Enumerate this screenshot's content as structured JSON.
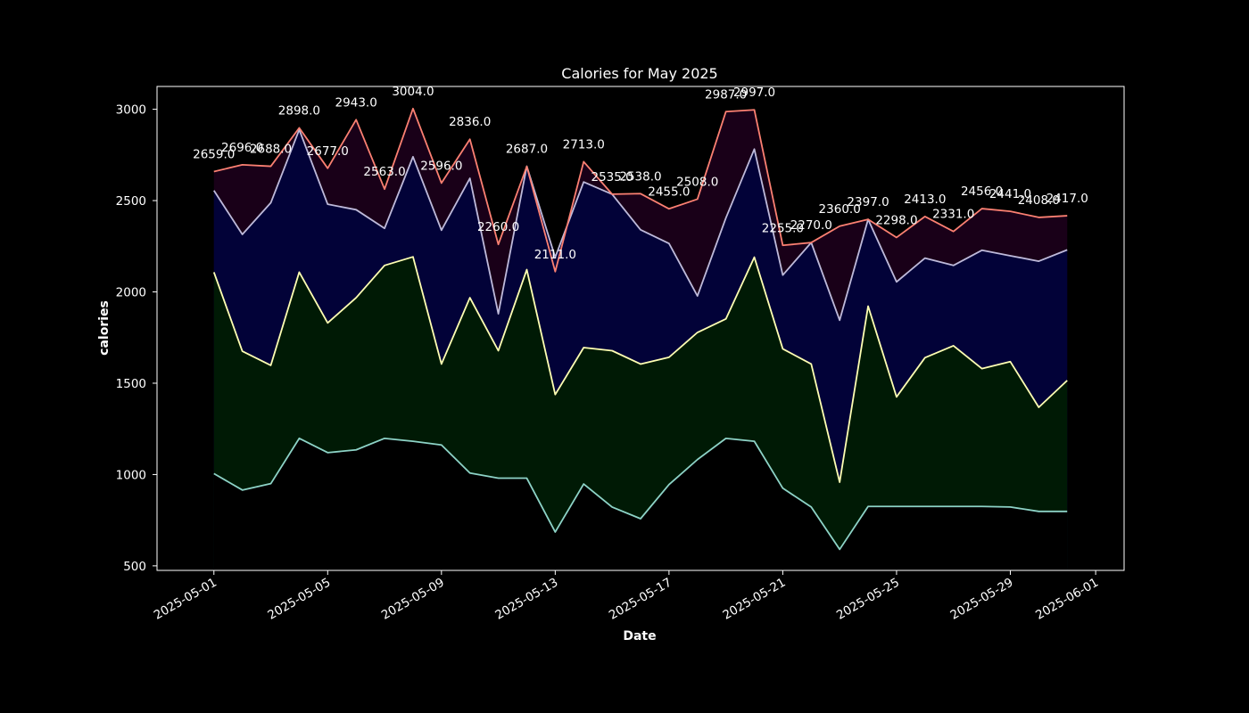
{
  "chart_data": {
    "type": "line",
    "title": "Calories for May 2025",
    "xlabel": "Date",
    "ylabel": "calories",
    "xlim": [
      "2025-04-29",
      "2025-06-02"
    ],
    "ylim": [
      475,
      3125
    ],
    "grid": false,
    "yticks": [
      500,
      1000,
      1500,
      2000,
      2500,
      3000
    ],
    "xticks": [
      "2025-05-01",
      "2025-05-05",
      "2025-05-09",
      "2025-05-13",
      "2025-05-17",
      "2025-05-21",
      "2025-05-25",
      "2025-05-29",
      "2025-06-01"
    ],
    "x": [
      "2025-05-01",
      "2025-05-02",
      "2025-05-03",
      "2025-05-04",
      "2025-05-05",
      "2025-05-06",
      "2025-05-07",
      "2025-05-08",
      "2025-05-09",
      "2025-05-10",
      "2025-05-11",
      "2025-05-12",
      "2025-05-13",
      "2025-05-14",
      "2025-05-15",
      "2025-05-16",
      "2025-05-17",
      "2025-05-18",
      "2025-05-19",
      "2025-05-20",
      "2025-05-21",
      "2025-05-22",
      "2025-05-23",
      "2025-05-24",
      "2025-05-25",
      "2025-05-26",
      "2025-05-27",
      "2025-05-28",
      "2025-05-29",
      "2025-05-30",
      "2025-05-31"
    ],
    "series": [
      {
        "color": "#8dd3c7",
        "fill": "#000000",
        "values": [
          1005,
          915,
          950,
          1198,
          1120,
          1135,
          1198,
          1182,
          1162,
          1008,
          980,
          980,
          685,
          948,
          822,
          758,
          945,
          1082,
          1198,
          1182,
          925,
          822,
          590,
          825,
          825,
          825,
          825,
          825,
          822,
          798,
          798
        ]
      },
      {
        "color": "#ffffb3",
        "fill": "#001a05",
        "values": [
          2108,
          1675,
          1598,
          2108,
          1830,
          1968,
          2145,
          2192,
          1605,
          1968,
          1678,
          2122,
          1438,
          1695,
          1678,
          1605,
          1642,
          1778,
          1852,
          2190,
          1688,
          1605,
          958,
          1922,
          1425,
          1640,
          1705,
          1580,
          1618,
          1368,
          1515
        ]
      },
      {
        "color": "#bebada",
        "fill": "#020238",
        "values": [
          2555,
          2315,
          2488,
          2888,
          2480,
          2450,
          2348,
          2740,
          2338,
          2622,
          1880,
          2688,
          2190,
          2602,
          2535,
          2340,
          2265,
          1978,
          2405,
          2782,
          2092,
          2270,
          1845,
          2397,
          2055,
          2185,
          2145,
          2228,
          2198,
          2168,
          2230
        ]
      },
      {
        "color": "#fb8072",
        "fill": "#190018",
        "values": [
          2659,
          2696,
          2688,
          2898,
          2677,
          2943,
          2563,
          3004,
          2596,
          2836,
          2260,
          2687,
          2111,
          2713,
          2535,
          2538,
          2455,
          2508,
          2987,
          2997,
          2255,
          2270,
          2360,
          2397,
          2298,
          2413,
          2331,
          2456,
          2441,
          2408,
          2417
        ],
        "labels": [
          "2659.0",
          "2696.0",
          "2688.0",
          "2898.0",
          "2677.0",
          "2943.0",
          "2563.0",
          "3004.0",
          "2596.0",
          "2836.0",
          "2260.0",
          "2687.0",
          "2111.0",
          "2713.0",
          "2535.0",
          "2538.0",
          "2455.0",
          "2508.0",
          "2987.0",
          "2997.0",
          "2255.0",
          "2270.0",
          "2360.0",
          "2397.0",
          "2298.0",
          "2413.0",
          "2331.0",
          "2456.0",
          "2441.0",
          "2408.0",
          "2417.0"
        ]
      }
    ]
  }
}
